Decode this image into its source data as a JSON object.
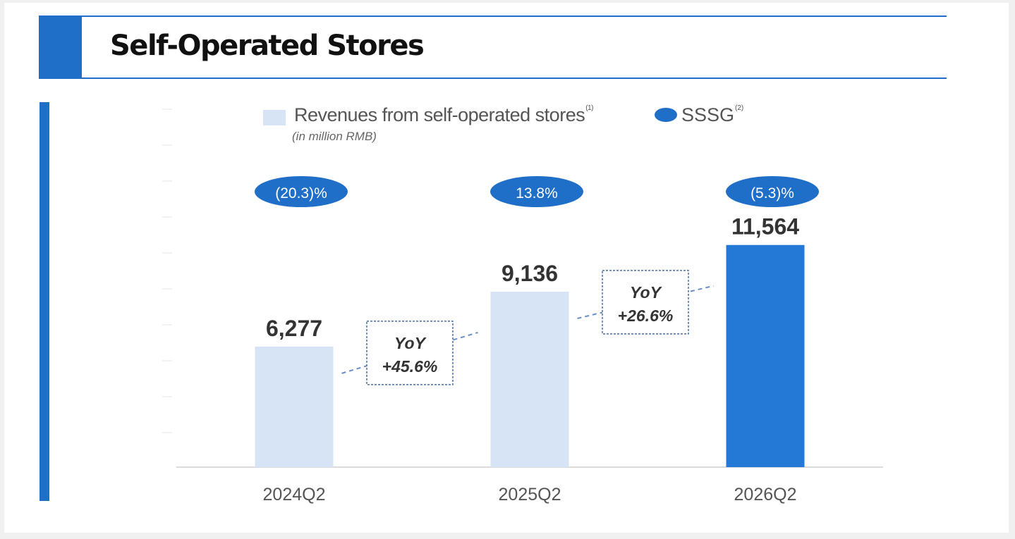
{
  "title": "Self-Operated Stores",
  "legend": {
    "revenue_label": "Revenues from self-operated stores",
    "revenue_footnote": "(1)",
    "revenue_units": "(in million RMB)",
    "sssg_label": "SSSG",
    "sssg_footnote": "(2)"
  },
  "colors": {
    "accent": "#1f6fc9",
    "bar_light": "#d6e4f5",
    "bar_dark": "#2479d6",
    "text_dark": "#333333",
    "text_gray": "#555555"
  },
  "chart_data": {
    "type": "bar",
    "categories": [
      "2024Q2",
      "2025Q2",
      "2026Q2"
    ],
    "values": [
      6277,
      9136,
      11564
    ],
    "value_labels": [
      "6,277",
      "9,136",
      "11,564"
    ],
    "highlight_index": 2,
    "sssg": [
      "(20.3)%",
      "13.8%",
      "(5.3)%"
    ],
    "yoy": [
      {
        "line1": "YoY",
        "line2": "+45.6%"
      },
      {
        "line1": "YoY",
        "line2": "+26.6%"
      }
    ],
    "ylim": [
      0,
      19000
    ],
    "grid": false,
    "legend_position": "top"
  }
}
